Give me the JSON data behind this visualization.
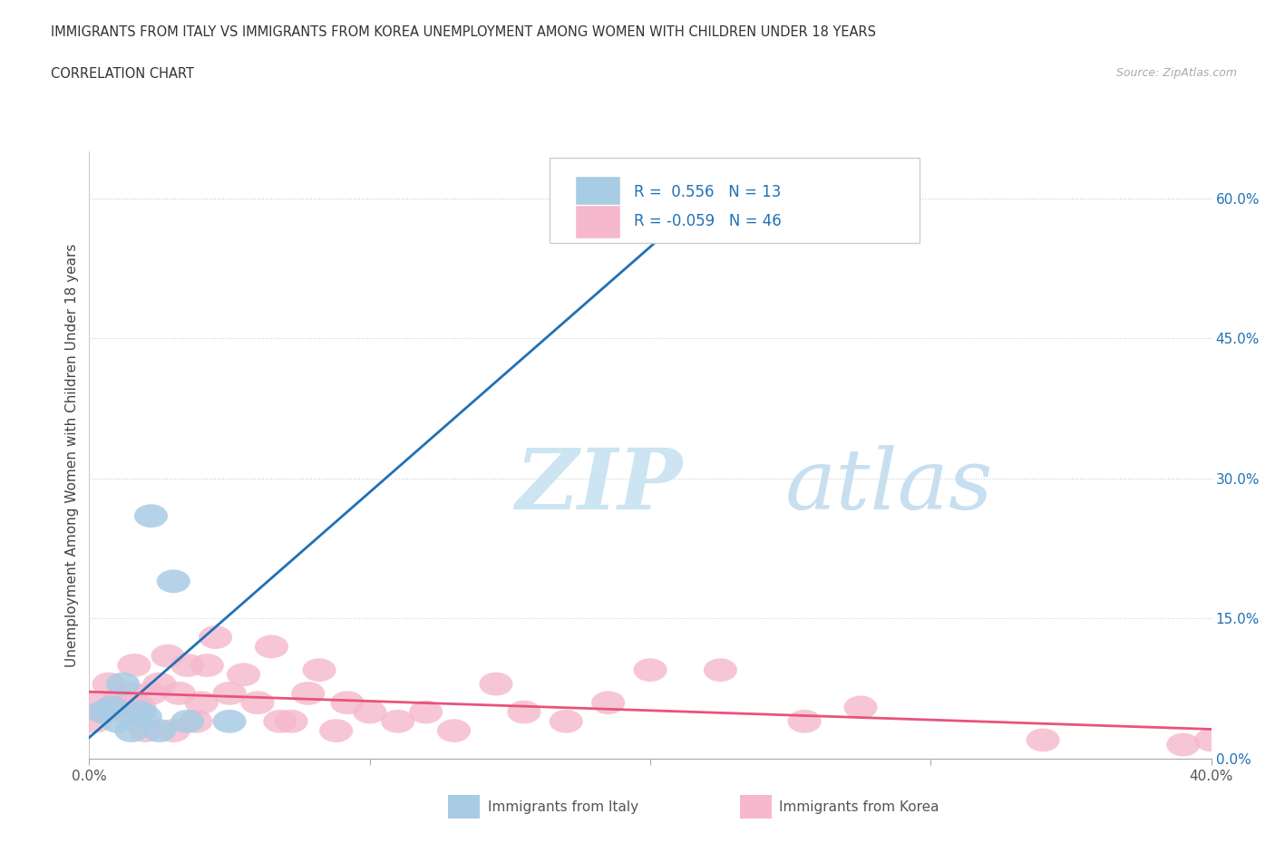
{
  "title_line1": "IMMIGRANTS FROM ITALY VS IMMIGRANTS FROM KOREA UNEMPLOYMENT AMONG WOMEN WITH CHILDREN UNDER 18 YEARS",
  "title_line2": "CORRELATION CHART",
  "source_text": "Source: ZipAtlas.com",
  "ylabel": "Unemployment Among Women with Children Under 18 years",
  "xlabel_italy": "Immigrants from Italy",
  "xlabel_korea": "Immigrants from Korea",
  "italy_R": 0.556,
  "italy_N": 13,
  "korea_R": -0.059,
  "korea_N": 46,
  "italy_scatter_color": "#a8cce4",
  "korea_scatter_color": "#f5b8cc",
  "italy_line_color": "#2171b5",
  "korea_line_color": "#e8537a",
  "watermark_zip_color": "#cde4f2",
  "watermark_atlas_color": "#c8dff0",
  "xmin": 0.0,
  "xmax": 0.4,
  "ymin": 0.0,
  "ymax": 0.65,
  "ytick_values": [
    0.0,
    0.15,
    0.3,
    0.45,
    0.6
  ],
  "xtick_values": [
    0.0,
    0.1,
    0.2,
    0.3,
    0.4
  ],
  "italy_x": [
    0.005,
    0.008,
    0.01,
    0.012,
    0.015,
    0.018,
    0.02,
    0.022,
    0.025,
    0.03,
    0.035,
    0.05,
    0.22
  ],
  "italy_y": [
    0.05,
    0.055,
    0.04,
    0.08,
    0.03,
    0.05,
    0.045,
    0.26,
    0.03,
    0.19,
    0.04,
    0.04,
    0.62
  ],
  "korea_x": [
    0.002,
    0.003,
    0.005,
    0.007,
    0.01,
    0.011,
    0.013,
    0.015,
    0.016,
    0.018,
    0.02,
    0.022,
    0.025,
    0.028,
    0.03,
    0.032,
    0.035,
    0.038,
    0.04,
    0.042,
    0.045,
    0.05,
    0.055,
    0.06,
    0.065,
    0.068,
    0.072,
    0.078,
    0.082,
    0.088,
    0.092,
    0.1,
    0.11,
    0.12,
    0.13,
    0.145,
    0.155,
    0.17,
    0.185,
    0.2,
    0.225,
    0.255,
    0.275,
    0.34,
    0.39,
    0.4
  ],
  "korea_y": [
    0.04,
    0.06,
    0.05,
    0.08,
    0.055,
    0.065,
    0.05,
    0.07,
    0.1,
    0.055,
    0.03,
    0.07,
    0.08,
    0.11,
    0.03,
    0.07,
    0.1,
    0.04,
    0.06,
    0.1,
    0.13,
    0.07,
    0.09,
    0.06,
    0.12,
    0.04,
    0.04,
    0.07,
    0.095,
    0.03,
    0.06,
    0.05,
    0.04,
    0.05,
    0.03,
    0.08,
    0.05,
    0.04,
    0.06,
    0.095,
    0.095,
    0.04,
    0.055,
    0.02,
    0.015,
    0.02
  ]
}
